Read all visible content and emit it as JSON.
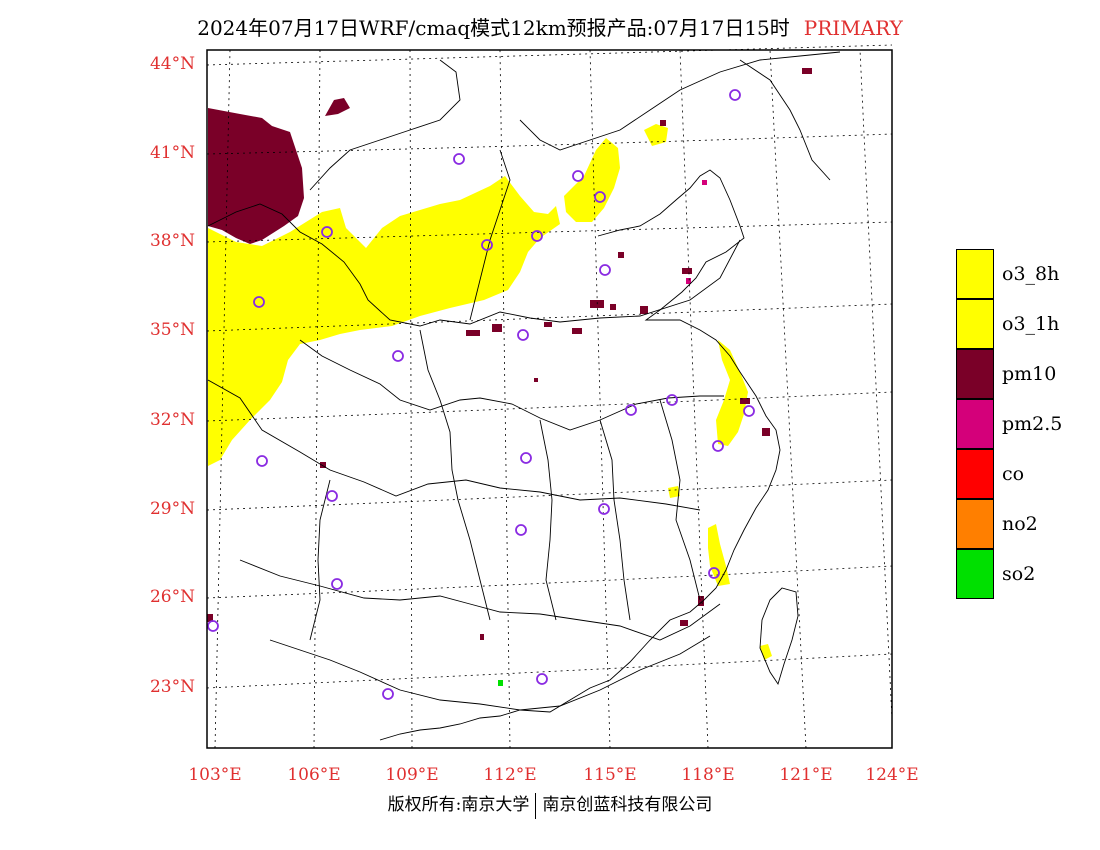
{
  "title": {
    "main": "2024年07月17日WRF/cmaq模式12km预报产品:07月17日15时",
    "tag": "PRIMARY"
  },
  "axes": {
    "lat_labels": [
      "44°N",
      "41°N",
      "38°N",
      "35°N",
      "32°N",
      "29°N",
      "26°N",
      "23°N"
    ],
    "lon_labels": [
      "103°E",
      "106°E",
      "109°E",
      "112°E",
      "115°E",
      "118°E",
      "121°E",
      "124°E"
    ]
  },
  "legend": [
    {
      "label": "o3_8h",
      "color": "#ffff00"
    },
    {
      "label": "o3_1h",
      "color": "#ffff00"
    },
    {
      "label": "pm10",
      "color": "#7a0028"
    },
    {
      "label": "pm2.5",
      "color": "#d4007a"
    },
    {
      "label": "co",
      "color": "#ff0000"
    },
    {
      "label": "no2",
      "color": "#ff7f00"
    },
    {
      "label": "so2",
      "color": "#00e000"
    }
  ],
  "colors": {
    "label_red": "#e03030",
    "station_purple": "#8a2be2"
  },
  "footer": {
    "left": "版权所有:南京大学",
    "right": "南京创蓝科技有限公司"
  }
}
